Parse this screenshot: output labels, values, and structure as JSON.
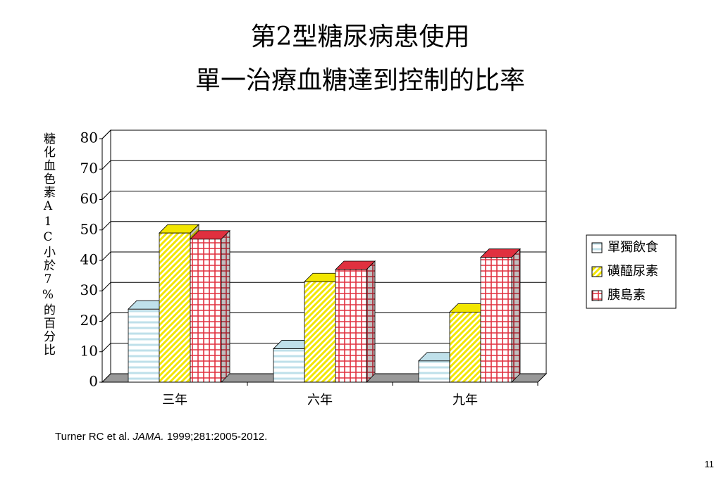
{
  "chart_data": {
    "type": "bar3d",
    "title": [
      "第2型糖尿病患使用",
      "單一治療血糖達到控制的比率"
    ],
    "y_label": "糖化血色素A1C小於7%的百分比",
    "categories": [
      "三年",
      "六年",
      "九年"
    ],
    "series": [
      {
        "name": "單獨飲食",
        "color": "#bfe0ea",
        "pattern": "horizontal",
        "values": [
          24,
          11,
          7
        ]
      },
      {
        "name": "磺醯尿素",
        "color": "#f2e600",
        "pattern": "diagonal",
        "values": [
          49,
          33,
          23
        ]
      },
      {
        "name": "胰島素",
        "color": "#e0303f",
        "pattern": "grid",
        "values": [
          47,
          37,
          41
        ]
      }
    ],
    "ylim": [
      0,
      80
    ],
    "yticks": [
      0,
      10,
      20,
      30,
      40,
      50,
      60,
      70,
      80
    ],
    "grid": true,
    "legend": "right"
  },
  "footnote": {
    "authors": "Turner RC et al.",
    "journal": "JAMA.",
    "details": "1999;281:2005-2012."
  },
  "page_number": "11"
}
